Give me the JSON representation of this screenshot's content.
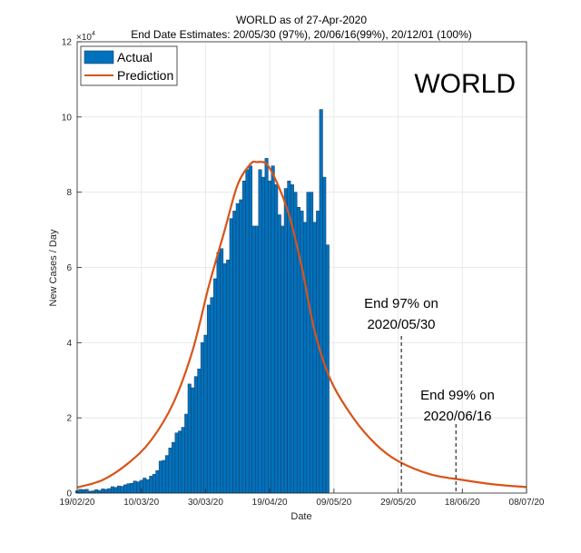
{
  "chart_data": {
    "type": "bar",
    "title": "WORLD as of 27-Apr-2020",
    "subtitle": "End Date Estimates: 20/05/30 (97%), 20/06/16(99%), 20/12/01 (100%)",
    "xlabel": "Date",
    "ylabel": "New Cases / Day",
    "y_exponent_label": "×10",
    "y_exponent_power": "4",
    "ylim": [
      0,
      120000
    ],
    "y_ticks": [
      0,
      20000,
      40000,
      60000,
      80000,
      100000,
      120000
    ],
    "y_tick_labels": [
      "0",
      "2",
      "4",
      "6",
      "8",
      "10",
      "12"
    ],
    "x_range": [
      "2020-02-19",
      "2020-07-08"
    ],
    "x_ticks": [
      "2020-02-19",
      "2020-03-10",
      "2020-03-30",
      "2020-04-19",
      "2020-05-09",
      "2020-05-29",
      "2020-06-18",
      "2020-07-08"
    ],
    "x_tick_labels": [
      "19/02/20",
      "10/03/20",
      "30/03/20",
      "19/04/20",
      "09/05/20",
      "29/05/20",
      "18/06/20",
      "08/07/20"
    ],
    "grid": true,
    "legend_position": "top-left",
    "legend": [
      "Actual",
      "Prediction"
    ],
    "big_label": "WORLD",
    "colors": {
      "actual": "#0072bd",
      "actual_edge": "#1a3d66",
      "prediction": "#d95319",
      "grid": "#e5e5e5",
      "axis": "#262626"
    },
    "series": [
      {
        "name": "Actual",
        "type": "bar",
        "start_date": "2020-02-19",
        "values": [
          600,
          1000,
          900,
          1000,
          500,
          600,
          900,
          700,
          1100,
          1000,
          1200,
          1700,
          1500,
          1900,
          1800,
          2200,
          2500,
          2600,
          3200,
          3000,
          3400,
          4000,
          3600,
          4500,
          5000,
          6000,
          8500,
          8700,
          10000,
          12000,
          13500,
          16000,
          16500,
          17500,
          21000,
          29000,
          28000,
          31000,
          33000,
          40000,
          42000,
          50000,
          52000,
          57000,
          64000,
          65000,
          61000,
          62000,
          73000,
          75000,
          77000,
          78000,
          83000,
          86000,
          87000,
          71000,
          71000,
          86000,
          84000,
          89000,
          83000,
          87000,
          82000,
          74000,
          71000,
          81000,
          83000,
          82000,
          80000,
          76000,
          75000,
          72000,
          80000,
          80000,
          72000,
          75000,
          102000,
          84000,
          66000
        ]
      },
      {
        "name": "Prediction",
        "type": "line",
        "x": [
          "2020-02-19",
          "2020-02-27",
          "2020-03-06",
          "2020-03-13",
          "2020-03-20",
          "2020-03-26",
          "2020-03-31",
          "2020-04-05",
          "2020-04-09",
          "2020-04-13",
          "2020-04-15",
          "2020-04-18",
          "2020-04-21",
          "2020-04-25",
          "2020-04-29",
          "2020-05-03",
          "2020-05-08",
          "2020-05-15",
          "2020-05-22",
          "2020-05-29",
          "2020-06-08",
          "2020-06-18",
          "2020-06-28",
          "2020-07-08"
        ],
        "y": [
          1500,
          3500,
          8000,
          14000,
          24000,
          38000,
          55000,
          70000,
          82000,
          87500,
          88000,
          87500,
          83000,
          74000,
          60000,
          43000,
          30000,
          20000,
          13000,
          8500,
          5000,
          3500,
          2300,
          1600
        ]
      }
    ],
    "annotations": [
      {
        "line1": "End 97% on",
        "line2": "2020/05/30",
        "date": "2020-05-30"
      },
      {
        "line1": "End 99% on",
        "line2": "2020/06/16",
        "date": "2020-06-16"
      }
    ]
  }
}
